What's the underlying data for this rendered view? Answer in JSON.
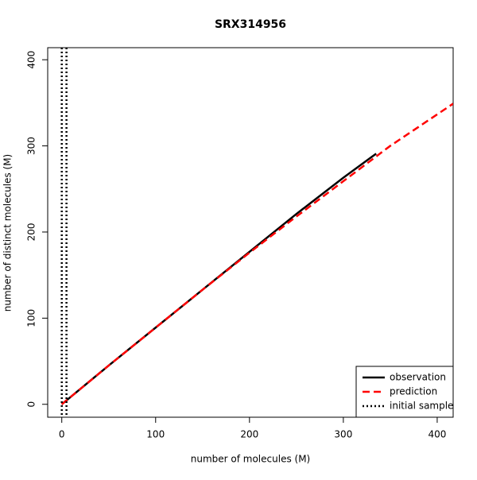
{
  "chart_data": {
    "type": "line",
    "title": "SRX314956",
    "xlabel": "number of molecules (M)",
    "ylabel": "number of distinct molecules (M)",
    "xlim": [
      -15,
      417
    ],
    "ylim": [
      -15,
      414
    ],
    "xticks": [
      0,
      100,
      200,
      300,
      400
    ],
    "yticks": [
      0,
      100,
      200,
      300,
      400
    ],
    "grid": false,
    "legend": "bottomright",
    "series": [
      {
        "name": "observation",
        "color": "#000000",
        "dash": "solid",
        "x": [
          0,
          50,
          100,
          150,
          200,
          250,
          300,
          330,
          335
        ],
        "values": [
          0,
          45,
          89,
          133,
          177,
          221,
          263,
          287,
          291
        ]
      },
      {
        "name": "prediction",
        "color": "#ff0000",
        "dash": "dashed",
        "x": [
          0,
          50,
          100,
          150,
          200,
          250,
          300,
          350,
          417
        ],
        "values": [
          0,
          45,
          89,
          133,
          176,
          218,
          259,
          300,
          349
        ]
      },
      {
        "name": "initial sample",
        "color": "#000000",
        "dash": "dotted",
        "vlines": [
          0,
          5
        ]
      }
    ]
  }
}
